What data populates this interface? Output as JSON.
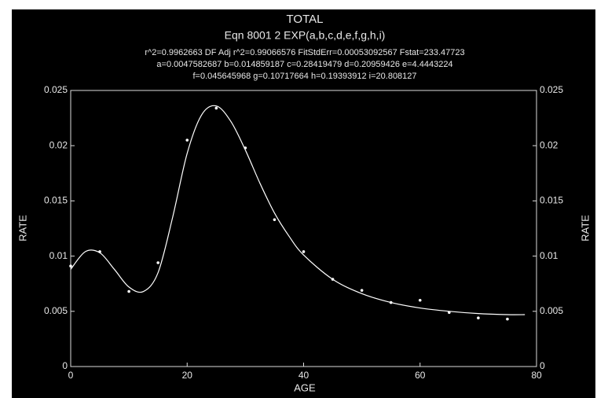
{
  "chart_data": {
    "type": "scatter",
    "title": "TOTAL",
    "subtitle": "Eqn 8001  2  EXP(a,b,c,d,e,f,g,h,i)",
    "annotations": [
      "r^2=0.9962663  DF Adj r^2=0.99066576  FitStdErr=0.00053092567  Fstat=233.47723",
      "a=0.0047582687 b=0.014859187 c=0.28419479 d=0.20959426 e=4.4443224",
      "f=0.045645968 g=0.10717664 h=0.19393912 i=20.808127"
    ],
    "xlabel": "AGE",
    "ylabel": "RATE",
    "y2label": "RATE",
    "xlim": [
      0,
      80
    ],
    "xticks": [
      0,
      20,
      40,
      60,
      80
    ],
    "ylim": [
      0,
      0.025
    ],
    "yticks": [
      0,
      0.005,
      0.01,
      0.015,
      0.02,
      0.025
    ],
    "y2lim": [
      0,
      0.025
    ],
    "y2ticks": [
      0,
      0.005,
      0.01,
      0.015,
      0.02,
      0.025
    ],
    "series": [
      {
        "color": "#ffffff",
        "marker": "dot",
        "x": [
          0,
          5,
          10,
          15,
          20,
          25,
          30,
          35,
          40,
          45,
          50,
          55,
          60,
          65,
          70,
          75
        ],
        "values": [
          0.0091,
          0.0104,
          0.0068,
          0.0094,
          0.0205,
          0.0234,
          0.0198,
          0.0133,
          0.0104,
          0.0079,
          0.0069,
          0.0058,
          0.006,
          0.0049,
          0.0044,
          0.0043
        ]
      },
      {
        "color": "#ffffff",
        "style": "line",
        "x": [
          0,
          2.5,
          5,
          7.5,
          10,
          12.5,
          15,
          17.5,
          20,
          22.5,
          25,
          27.5,
          30,
          32.5,
          35,
          37.5,
          40,
          45,
          50,
          55,
          60,
          65,
          70,
          75,
          78
        ],
        "values": [
          0.0088,
          0.0104,
          0.0103,
          0.0088,
          0.0072,
          0.0068,
          0.0085,
          0.0135,
          0.0193,
          0.0228,
          0.0236,
          0.0222,
          0.0196,
          0.0166,
          0.0139,
          0.0118,
          0.0101,
          0.0079,
          0.0066,
          0.0058,
          0.0053,
          0.005,
          0.0048,
          0.0047,
          0.0047
        ]
      }
    ]
  }
}
